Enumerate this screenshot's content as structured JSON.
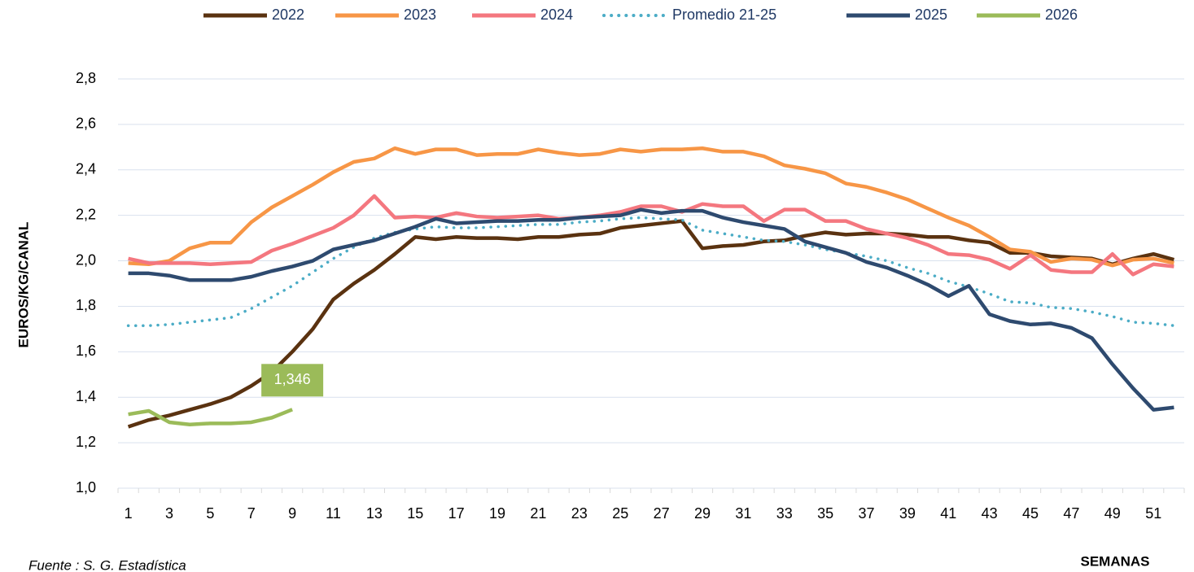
{
  "chart_data": {
    "type": "line",
    "y_label": "EUROS/KG/CANAL",
    "x_label": "SEMANAS",
    "source": "Fuente : S. G. Estadística",
    "categories": [
      "1",
      null,
      "3",
      null,
      "5",
      null,
      "7",
      null,
      "9",
      null,
      "11",
      null,
      "13",
      null,
      "15",
      null,
      "17",
      null,
      "19",
      null,
      "21",
      null,
      "23",
      null,
      "25",
      null,
      "27",
      null,
      "29",
      null,
      "31",
      null,
      "33",
      null,
      "35",
      null,
      "37",
      null,
      "39",
      null,
      "41",
      null,
      "43",
      null,
      "45",
      null,
      "47",
      null,
      "49",
      null,
      "51",
      null
    ],
    "ylim": [
      1.0,
      2.8
    ],
    "yticks": [
      {
        "value": 1.0,
        "label": "1,0"
      },
      {
        "value": 1.2,
        "label": "1,2"
      },
      {
        "value": 1.4,
        "label": "1,4"
      },
      {
        "value": 1.6,
        "label": "1,6"
      },
      {
        "value": 1.8,
        "label": "1,8"
      },
      {
        "value": 2.0,
        "label": "2,0"
      },
      {
        "value": 2.2,
        "label": "2,2"
      },
      {
        "value": 2.4,
        "label": "2,4"
      },
      {
        "value": 2.6,
        "label": "2,6"
      },
      {
        "value": 2.8,
        "label": "2,8"
      }
    ],
    "grid": true,
    "legend": "top",
    "series": [
      {
        "name": "2022",
        "color": "#5a3210",
        "style": "solid",
        "values": [
          1.27,
          1.3,
          1.32,
          1.345,
          1.37,
          1.4,
          1.45,
          1.51,
          1.6,
          1.7,
          1.83,
          1.9,
          1.96,
          2.03,
          2.105,
          2.095,
          2.105,
          2.1,
          2.1,
          2.095,
          2.105,
          2.105,
          2.115,
          2.12,
          2.145,
          2.155,
          2.165,
          2.175,
          2.055,
          2.065,
          2.07,
          2.085,
          2.09,
          2.11,
          2.125,
          2.115,
          2.12,
          2.12,
          2.115,
          2.105,
          2.105,
          2.09,
          2.08,
          2.035,
          2.035,
          2.02,
          2.015,
          2.01,
          1.985,
          2.01,
          2.03,
          2.005
        ]
      },
      {
        "name": "2023",
        "color": "#f79646",
        "style": "solid",
        "values": [
          1.99,
          1.985,
          2.0,
          2.055,
          2.08,
          2.08,
          2.17,
          2.235,
          2.285,
          2.335,
          2.39,
          2.435,
          2.45,
          2.495,
          2.47,
          2.49,
          2.49,
          2.465,
          2.47,
          2.47,
          2.49,
          2.475,
          2.465,
          2.47,
          2.49,
          2.48,
          2.49,
          2.49,
          2.495,
          2.48,
          2.48,
          2.46,
          2.42,
          2.405,
          2.385,
          2.34,
          2.325,
          2.3,
          2.27,
          2.23,
          2.19,
          2.155,
          2.105,
          2.05,
          2.04,
          1.995,
          2.01,
          2.005,
          1.98,
          2.005,
          2.01,
          1.99
        ]
      },
      {
        "name": "2024",
        "color": "#f4777f",
        "style": "solid",
        "values": [
          2.01,
          1.99,
          1.99,
          1.99,
          1.985,
          1.99,
          1.995,
          2.045,
          2.075,
          2.11,
          2.145,
          2.2,
          2.285,
          2.19,
          2.195,
          2.19,
          2.21,
          2.195,
          2.19,
          2.195,
          2.2,
          2.185,
          2.19,
          2.2,
          2.215,
          2.24,
          2.24,
          2.215,
          2.25,
          2.24,
          2.24,
          2.175,
          2.225,
          2.225,
          2.175,
          2.175,
          2.14,
          2.12,
          2.1,
          2.07,
          2.03,
          2.025,
          2.005,
          1.965,
          2.025,
          1.96,
          1.95,
          1.95,
          2.03,
          1.94,
          1.985,
          1.975
        ]
      },
      {
        "name": "Promedio 21-25",
        "color": "#4bacc6",
        "style": "dotted",
        "values": [
          1.715,
          1.715,
          1.72,
          1.73,
          1.74,
          1.75,
          1.79,
          1.84,
          1.89,
          1.95,
          2.01,
          2.06,
          2.1,
          2.125,
          2.14,
          2.15,
          2.145,
          2.145,
          2.15,
          2.155,
          2.16,
          2.16,
          2.17,
          2.175,
          2.185,
          2.19,
          2.185,
          2.18,
          2.135,
          2.12,
          2.105,
          2.09,
          2.085,
          2.07,
          2.05,
          2.035,
          2.02,
          2.0,
          1.97,
          1.945,
          1.91,
          1.885,
          1.855,
          1.82,
          1.815,
          1.795,
          1.79,
          1.775,
          1.755,
          1.73,
          1.725,
          1.715
        ]
      },
      {
        "name": "2025",
        "color": "#2e4a6f",
        "style": "solid",
        "values": [
          1.945,
          1.945,
          1.935,
          1.915,
          1.915,
          1.915,
          1.93,
          1.955,
          1.975,
          2.0,
          2.05,
          2.07,
          2.09,
          2.12,
          2.15,
          2.185,
          2.165,
          2.17,
          2.175,
          2.175,
          2.18,
          2.18,
          2.19,
          2.195,
          2.2,
          2.225,
          2.21,
          2.22,
          2.22,
          2.19,
          2.17,
          2.155,
          2.14,
          2.085,
          2.06,
          2.035,
          1.995,
          1.97,
          1.935,
          1.895,
          1.845,
          1.89,
          1.765,
          1.735,
          1.72,
          1.725,
          1.705,
          1.66,
          1.545,
          1.44,
          1.345,
          1.355
        ]
      },
      {
        "name": "2026",
        "color": "#9bbb59",
        "style": "solid",
        "values": [
          1.325,
          1.34,
          1.29,
          1.28,
          1.285,
          1.285,
          1.29,
          1.31,
          1.346,
          null,
          null,
          null,
          null,
          null,
          null,
          null,
          null,
          null,
          null,
          null,
          null,
          null,
          null,
          null,
          null,
          null,
          null,
          null,
          null,
          null,
          null,
          null,
          null,
          null,
          null,
          null,
          null,
          null,
          null,
          null,
          null,
          null,
          null,
          null,
          null,
          null,
          null,
          null,
          null,
          null,
          null,
          null
        ],
        "value_labels": [
          null,
          null,
          null,
          null,
          null,
          null,
          null,
          null,
          "1,346",
          null,
          null,
          null,
          null,
          null,
          null,
          null,
          null,
          null,
          null,
          null,
          null,
          null,
          null,
          null,
          null,
          null,
          null,
          null,
          null,
          null,
          null,
          null,
          null,
          null,
          null,
          null,
          null,
          null,
          null,
          null,
          null,
          null,
          null,
          null,
          null,
          null,
          null,
          null,
          null,
          null,
          null,
          null
        ]
      }
    ]
  }
}
